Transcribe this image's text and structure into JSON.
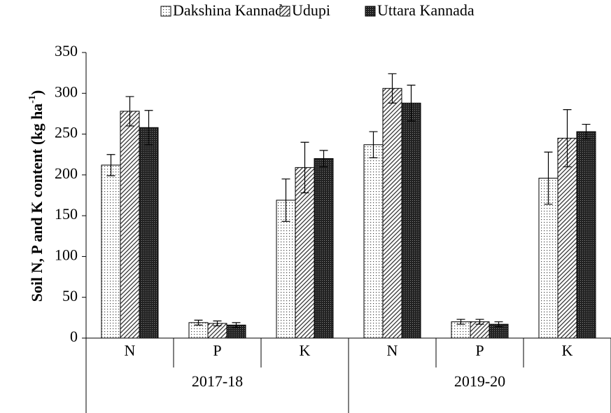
{
  "chart_data": {
    "type": "bar",
    "y_label": {
      "text": "Soil N, P and K content (kg ha",
      "superscript": "-1",
      "suffix": ")"
    },
    "groups": [
      {
        "name": "2017-18",
        "categories": [
          "N",
          "P",
          "K"
        ]
      },
      {
        "name": "2019-20",
        "categories": [
          "N",
          "P",
          "K"
        ]
      }
    ],
    "series": [
      {
        "name": "Dakshina Kannada",
        "color": "#000000",
        "pattern": "dots",
        "values": [
          212,
          19,
          169,
          237,
          20,
          196
        ],
        "errors": [
          13,
          3,
          26,
          16,
          3,
          32
        ]
      },
      {
        "name": "Udupi",
        "color": "#000000",
        "pattern": "diagonal",
        "values": [
          278,
          18,
          209,
          306,
          20,
          245
        ],
        "errors": [
          18,
          3,
          31,
          18,
          3,
          35
        ]
      },
      {
        "name": "Uttara Kannada",
        "color": "#000000",
        "pattern": "dense",
        "values": [
          258,
          16,
          220,
          288,
          17,
          253
        ],
        "errors": [
          21,
          3,
          10,
          22,
          3,
          9
        ]
      }
    ],
    "ylim": [
      0,
      350
    ],
    "yticks": [
      0,
      50,
      100,
      150,
      200,
      250,
      300,
      350
    ],
    "grid": false,
    "legend": "top"
  }
}
